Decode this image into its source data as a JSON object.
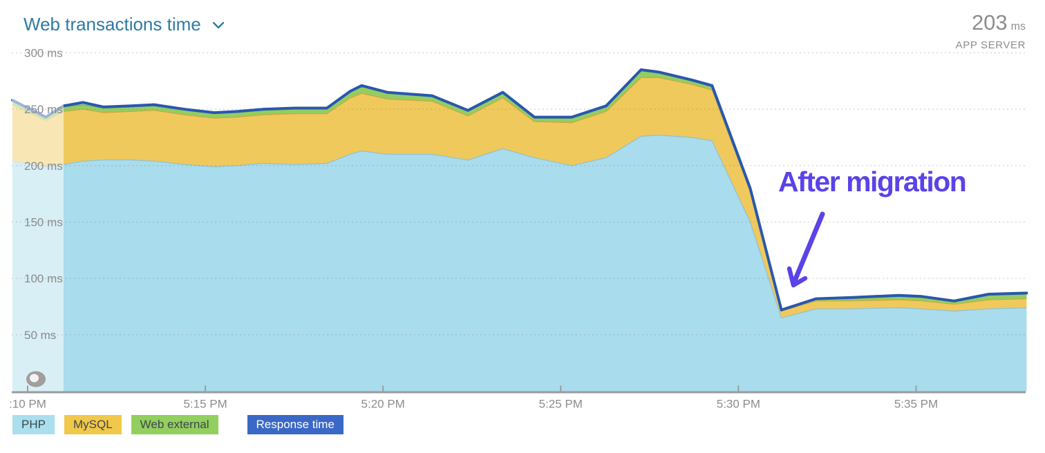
{
  "header": {
    "title": "Web transactions time",
    "current_value": "203",
    "current_unit": "ms",
    "current_label": "APP SERVER"
  },
  "annotation": {
    "text": "After migration",
    "color": "#5a43e8"
  },
  "legend": [
    {
      "label": "PHP",
      "bg": "#a9dfee",
      "fg": "#3e464c"
    },
    {
      "label": "MySQL",
      "bg": "#f1c84a",
      "fg": "#3e464c"
    },
    {
      "label": "Web external",
      "bg": "#92cf5e",
      "fg": "#3e464c"
    },
    {
      "label": "Response time",
      "bg": "#3a68c6",
      "fg": "#ffffff"
    }
  ],
  "chart_data": {
    "type": "area",
    "stacked": true,
    "title": "Web transactions time",
    "unit": "ms",
    "ylim": [
      0,
      300
    ],
    "grid": "dotted-horizontal",
    "legend_position": "bottom-left",
    "y_ticks": [
      {
        "value": 300,
        "label": "300 ms"
      },
      {
        "value": 250,
        "label": "250 ms"
      },
      {
        "value": 200,
        "label": "200 ms"
      },
      {
        "value": 150,
        "label": "150 ms"
      },
      {
        "value": 100,
        "label": "100 ms"
      },
      {
        "value": 50,
        "label": "50 ms"
      }
    ],
    "x_ticks": [
      {
        "minute": 0,
        "label": ":10 PM"
      },
      {
        "minute": 5,
        "label": "5:15 PM"
      },
      {
        "minute": 10,
        "label": "5:20 PM"
      },
      {
        "minute": 15,
        "label": "5:25 PM"
      },
      {
        "minute": 20,
        "label": "5:30 PM"
      },
      {
        "minute": 25,
        "label": "5:35 PM"
      }
    ],
    "x_range_minutes": [
      -0.43,
      28.11
    ],
    "faded_until_minute": 1.01,
    "t_minutes": [
      -0.43,
      0.51,
      1.01,
      1.56,
      2.14,
      2.92,
      3.56,
      4.42,
      5.25,
      5.89,
      6.61,
      7.53,
      8.42,
      9.08,
      9.4,
      10.12,
      11.38,
      12.39,
      13.37,
      14.26,
      15.31,
      16.28,
      17.26,
      17.76,
      18.68,
      19.26,
      20.33,
      21.21,
      22.18,
      23.15,
      24.51,
      25.16,
      26.07,
      27.04,
      28.11
    ],
    "series": [
      {
        "name": "PHP",
        "type": "area",
        "color": "#a9dcec",
        "edge": "#8fc0d2",
        "values": [
          204,
          199,
          201,
          204,
          205,
          205,
          204,
          201,
          199,
          200,
          202,
          201,
          202,
          210,
          213,
          210,
          210,
          205,
          215,
          207,
          200,
          207,
          226,
          227,
          225,
          222,
          150,
          65,
          73,
          73,
          74,
          73,
          71,
          73,
          74
        ]
      },
      {
        "name": "MySQL",
        "type": "area",
        "color": "#f0c95c",
        "edge": "#cda63e",
        "values": [
          50,
          41,
          47,
          46,
          42,
          43,
          45,
          44,
          43,
          43,
          43,
          45,
          44,
          50,
          51,
          49,
          47,
          39,
          45,
          32,
          38,
          41,
          52,
          51,
          47,
          45,
          27,
          6,
          7,
          7,
          7,
          7,
          6,
          8,
          8
        ]
      },
      {
        "name": "Web external",
        "type": "area",
        "color": "#93cd62",
        "edge": "#74b047",
        "values": [
          3,
          3,
          4,
          4,
          4,
          4,
          4,
          4,
          4,
          4,
          4,
          4,
          4,
          5,
          6,
          5,
          4,
          4,
          4,
          3,
          4,
          4,
          6,
          4,
          3,
          3,
          2,
          1,
          2,
          2,
          3,
          3,
          2,
          4,
          4
        ]
      },
      {
        "name": "Response time",
        "type": "line",
        "color": "#2857ae",
        "values": [
          258,
          243,
          253,
          256,
          252,
          253,
          254,
          250,
          247,
          248,
          250,
          251,
          251,
          266,
          271,
          265,
          262,
          249,
          265,
          243,
          243,
          253,
          285,
          283,
          276,
          271,
          180,
          72,
          82,
          83,
          85,
          84,
          80,
          86,
          87
        ]
      }
    ]
  }
}
